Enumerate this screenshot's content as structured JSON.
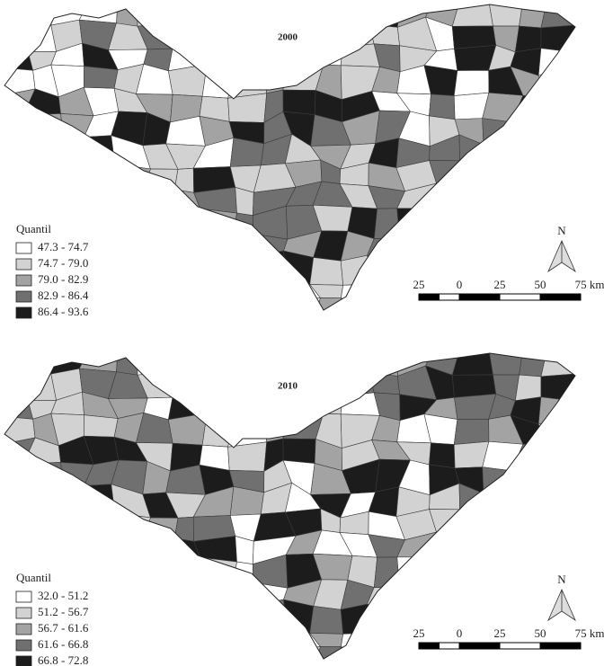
{
  "maps": [
    {
      "year": "2000",
      "legend_title": "Quantil",
      "legend": [
        "47.3 - 74.7",
        "74.7 - 79.0",
        "79.0 - 82.9",
        "82.9 - 86.4",
        "86.4 - 93.6"
      ],
      "scale_labels": [
        "25",
        "0",
        "25",
        "50",
        "75 km"
      ],
      "north": "N"
    },
    {
      "year": "2010",
      "legend_title": "Quantil",
      "legend": [
        "32.0 - 51.2",
        "51.2 - 56.7",
        "56.7 - 61.6",
        "61.6 - 66.8",
        "66.8 - 72.8"
      ],
      "scale_labels": [
        "25",
        "0",
        "25",
        "50",
        "75 km"
      ],
      "north": "N"
    }
  ]
}
